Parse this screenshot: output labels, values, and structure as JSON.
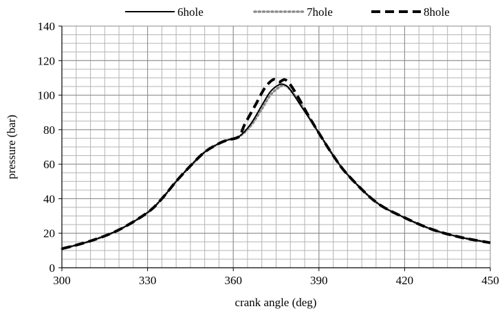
{
  "chart_data": {
    "type": "line",
    "title": "",
    "xlabel": "crank angle (deg)",
    "ylabel": "pressure (bar)",
    "xlim": [
      300,
      450
    ],
    "ylim": [
      0,
      140
    ],
    "x_ticks": [
      300,
      330,
      360,
      390,
      420,
      450
    ],
    "y_ticks": [
      0,
      20,
      40,
      60,
      80,
      100,
      120,
      140
    ],
    "x_tick_labels": [
      "300",
      "330",
      "360",
      "390",
      "420",
      "450"
    ],
    "y_tick_labels": [
      "0",
      "20",
      "40",
      "60",
      "80",
      "100",
      "120",
      "140"
    ],
    "x_minor_step": 5,
    "y_minor_step": 5,
    "grid": true,
    "legend_position": "top",
    "series": [
      {
        "name": "6hole",
        "color": "#000000",
        "style": "solid",
        "x": [
          300,
          310,
          320,
          330,
          335,
          340,
          345,
          350,
          355,
          358,
          362,
          366,
          370,
          373,
          376,
          378,
          380,
          384,
          390,
          395,
          400,
          410,
          420,
          430,
          440,
          450
        ],
        "y": [
          11,
          15.5,
          22,
          32,
          40,
          50,
          59,
          67,
          72,
          74,
          76,
          83,
          94,
          102,
          106,
          106,
          103,
          93,
          78,
          65,
          54,
          38,
          29,
          22,
          17.5,
          14.5
        ]
      },
      {
        "name": "7hole",
        "color": "#8c8c8c",
        "style": "dotted",
        "x": [
          300,
          310,
          320,
          330,
          335,
          340,
          345,
          350,
          355,
          358,
          362,
          366,
          370,
          373,
          376,
          378,
          380,
          384,
          390,
          395,
          400,
          410,
          420,
          430,
          440,
          450
        ],
        "y": [
          11,
          15.5,
          22,
          32,
          40,
          50,
          59,
          67,
          72,
          74,
          76,
          82,
          92,
          100,
          104.5,
          105.5,
          103,
          94,
          78,
          65,
          54,
          38,
          29,
          22,
          17.5,
          14.5
        ]
      },
      {
        "name": "8hole",
        "color": "#000000",
        "style": "dashed",
        "x": [
          300,
          310,
          320,
          330,
          335,
          340,
          345,
          350,
          355,
          358,
          362,
          364,
          368,
          371,
          374,
          376,
          378,
          380,
          383,
          386,
          390,
          395,
          400,
          410,
          420,
          430,
          440,
          450
        ],
        "y": [
          11,
          15.5,
          22,
          32,
          40,
          50,
          59,
          67,
          72,
          74,
          76,
          83,
          95,
          104,
          109,
          107.5,
          109,
          106,
          98,
          89,
          78,
          65,
          54,
          38,
          29,
          22,
          17.5,
          14.5
        ]
      }
    ]
  }
}
